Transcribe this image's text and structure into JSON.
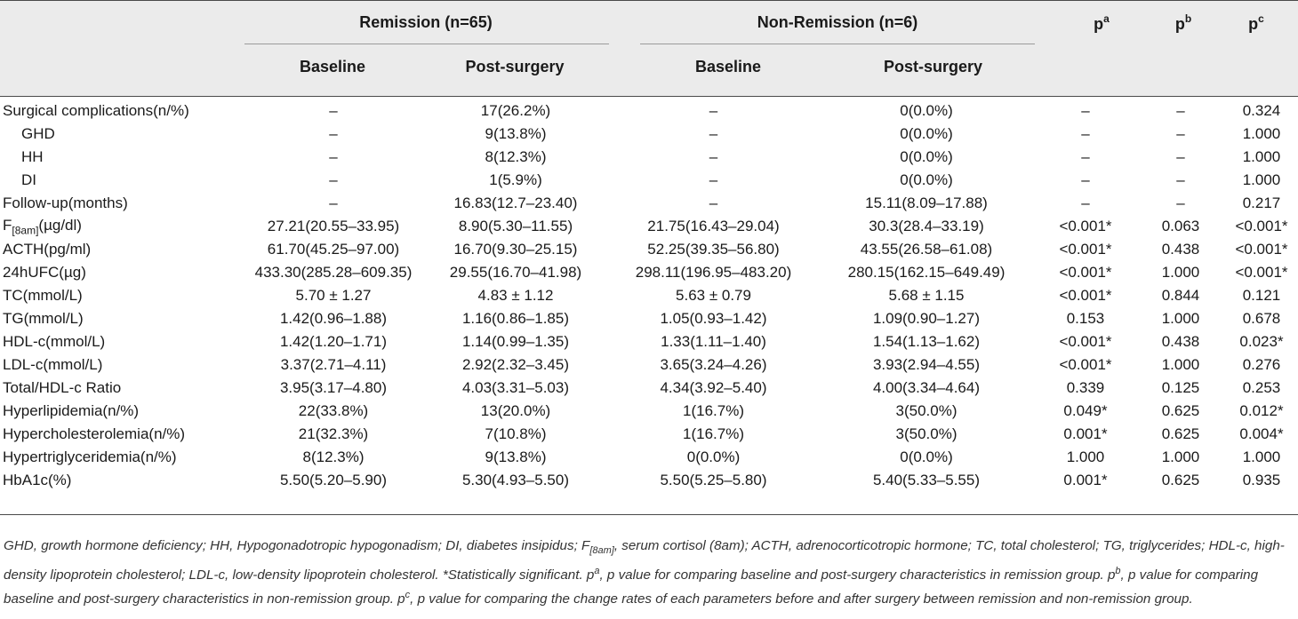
{
  "header": {
    "groups": [
      {
        "label": "Remission (n=65)"
      },
      {
        "label": "Non-Remission (n=6)"
      }
    ],
    "subcols": [
      "Baseline",
      "Post-surgery",
      "Baseline",
      "Post-surgery"
    ],
    "pcols": [
      {
        "base": "p",
        "sup": "a"
      },
      {
        "base": "p",
        "sup": "b"
      },
      {
        "base": "p",
        "sup": "c"
      }
    ]
  },
  "rows": [
    {
      "label": "Surgical complications(n/%)",
      "indent": false,
      "cells": [
        "–",
        "17(26.2%)",
        "–",
        "0(0.0%)",
        "–",
        "–",
        "0.324"
      ]
    },
    {
      "label": "GHD",
      "indent": true,
      "cells": [
        "–",
        "9(13.8%)",
        "–",
        "0(0.0%)",
        "–",
        "–",
        "1.000"
      ]
    },
    {
      "label": "HH",
      "indent": true,
      "cells": [
        "–",
        "8(12.3%)",
        "–",
        "0(0.0%)",
        "–",
        "–",
        "1.000"
      ]
    },
    {
      "label": "DI",
      "indent": true,
      "cells": [
        "–",
        "1(5.9%)",
        "–",
        "0(0.0%)",
        "–",
        "–",
        "1.000"
      ]
    },
    {
      "label": "Follow-up(months)",
      "indent": false,
      "cells": [
        "–",
        "16.83(12.7–23.40)",
        "–",
        "15.11(8.09–17.88)",
        "–",
        "–",
        "0.217"
      ]
    },
    {
      "label": "F",
      "label_sub": "[8am]",
      "label_tail": "(µg/dl)",
      "indent": false,
      "cells": [
        "27.21(20.55–33.95)",
        "8.90(5.30–11.55)",
        "21.75(16.43–29.04)",
        "30.3(28.4–33.19)",
        "<0.001*",
        "0.063",
        "<0.001*"
      ]
    },
    {
      "label": "ACTH(pg/ml)",
      "indent": false,
      "cells": [
        "61.70(45.25–97.00)",
        "16.70(9.30–25.15)",
        "52.25(39.35–56.80)",
        "43.55(26.58–61.08)",
        "<0.001*",
        "0.438",
        "<0.001*"
      ]
    },
    {
      "label": "24hUFC(µg)",
      "indent": false,
      "cells": [
        "433.30(285.28–609.35)",
        "29.55(16.70–41.98)",
        "298.11(196.95–483.20)",
        "280.15(162.15–649.49)",
        "<0.001*",
        "1.000",
        "<0.001*"
      ]
    },
    {
      "label": "TC(mmol/L)",
      "indent": false,
      "cells": [
        "5.70 ± 1.27",
        "4.83 ± 1.12",
        "5.63 ± 0.79",
        "5.68 ± 1.15",
        "<0.001*",
        "0.844",
        "0.121"
      ]
    },
    {
      "label": "TG(mmol/L)",
      "indent": false,
      "cells": [
        "1.42(0.96–1.88)",
        "1.16(0.86–1.85)",
        "1.05(0.93–1.42)",
        "1.09(0.90–1.27)",
        "0.153",
        "1.000",
        "0.678"
      ]
    },
    {
      "label": "HDL-c(mmol/L)",
      "indent": false,
      "cells": [
        "1.42(1.20–1.71)",
        "1.14(0.99–1.35)",
        "1.33(1.11–1.40)",
        "1.54(1.13–1.62)",
        "<0.001*",
        "0.438",
        "0.023*"
      ]
    },
    {
      "label": "LDL-c(mmol/L)",
      "indent": false,
      "cells": [
        "3.37(2.71–4.11)",
        "2.92(2.32–3.45)",
        "3.65(3.24–4.26)",
        "3.93(2.94–4.55)",
        "<0.001*",
        "1.000",
        "0.276"
      ]
    },
    {
      "label": "Total/HDL-c Ratio",
      "indent": false,
      "cells": [
        "3.95(3.17–4.80)",
        "4.03(3.31–5.03)",
        "4.34(3.92–5.40)",
        "4.00(3.34–4.64)",
        "0.339",
        "0.125",
        "0.253"
      ]
    },
    {
      "label": "Hyperlipidemia(n/%)",
      "indent": false,
      "cells": [
        "22(33.8%)",
        "13(20.0%)",
        "1(16.7%)",
        "3(50.0%)",
        "0.049*",
        "0.625",
        "0.012*"
      ]
    },
    {
      "label": "Hypercholesterolemia(n/%)",
      "indent": false,
      "cells": [
        "21(32.3%)",
        "7(10.8%)",
        "1(16.7%)",
        "3(50.0%)",
        "0.001*",
        "0.625",
        "0.004*"
      ]
    },
    {
      "label": "Hypertriglyceridemia(n/%)",
      "indent": false,
      "cells": [
        "8(12.3%)",
        "9(13.8%)",
        "0(0.0%)",
        "0(0.0%)",
        "1.000",
        "1.000",
        "1.000"
      ]
    },
    {
      "label": "HbA1c(%)",
      "indent": false,
      "cells": [
        "5.50(5.20–5.90)",
        "5.30(4.93–5.50)",
        "5.50(5.25–5.80)",
        "5.40(5.33–5.55)",
        "0.001*",
        "0.625",
        "0.935"
      ]
    }
  ],
  "footnote": {
    "part1": "GHD, growth hormone deficiency; HH, Hypogonadotropic hypogonadism; DI, diabetes insipidus; F",
    "sub1": "[8am]",
    "part2": ", serum cortisol (8am); ACTH, adrenocorticotropic hormone; TC, total cholesterol; TG, triglycerides; HDL-c, high-density lipoprotein cholesterol; LDL-c, low-density lipoprotein cholesterol. *Statistically significant. p",
    "sup_a": "a",
    "part3": ", p value for comparing baseline and post-surgery characteristics in remission group. p",
    "sup_b": "b",
    "part4": ", p value for comparing baseline and post-surgery characteristics in non-remission group. p",
    "sup_c": "c",
    "part5": ", p value for comparing the change rates of each parameters before and after surgery between remission and non-remission group."
  }
}
